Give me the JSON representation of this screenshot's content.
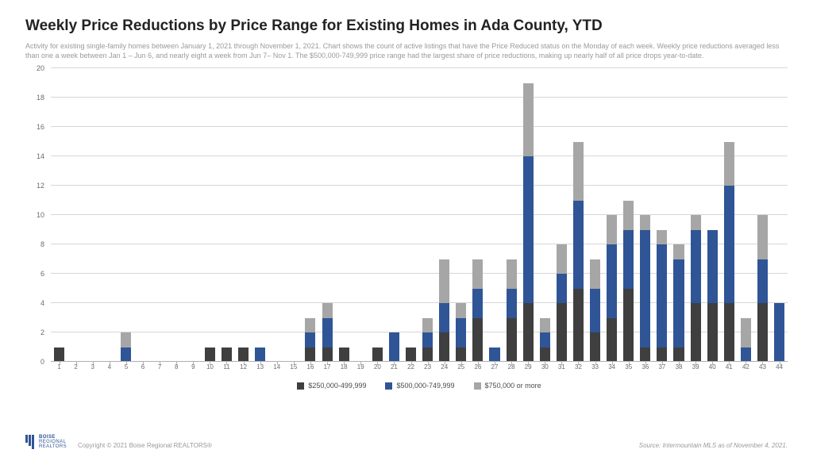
{
  "title": "Weekly Price Reductions by Price Range for Existing Homes in Ada County, YTD",
  "subtitle": "Activity for existing single-family homes between January 1, 2021 through November 1, 2021. Chart shows the count of active listings that have the Price Reduced status on the Monday of each week. Weekly price reductions averaged less than one a week between Jan 1 – Jun 6, and nearly eight a week from Jun 7– Nov 1.  The $500,000-749,999 price range had the largest  share of price reductions, making up nearly half of all price drops year-to-date.",
  "chart": {
    "type": "stacked-bar",
    "ylim": [
      0,
      20
    ],
    "ytick_step": 2,
    "grid_color": "#d6d6d6",
    "axis_color": "#b0b0b0",
    "label_color": "#6b6b6b",
    "label_fontsize": 9,
    "series": [
      {
        "key": "s1",
        "label": "$250,000-499,999",
        "color": "#3f3f3f"
      },
      {
        "key": "s2",
        "label": "$500,000-749,999",
        "color": "#2f5596"
      },
      {
        "key": "s3",
        "label": "$750,000 or more",
        "color": "#a6a6a6"
      }
    ],
    "categories": [
      "1",
      "2",
      "3",
      "4",
      "5",
      "6",
      "7",
      "8",
      "9",
      "10",
      "11",
      "12",
      "13",
      "14",
      "15",
      "16",
      "17",
      "18",
      "19",
      "20",
      "21",
      "22",
      "23",
      "24",
      "25",
      "26",
      "27",
      "28",
      "29",
      "30",
      "31",
      "32",
      "33",
      "34",
      "35",
      "36",
      "37",
      "38",
      "39",
      "40",
      "41",
      "42",
      "43",
      "44"
    ],
    "data": [
      {
        "s1": 1,
        "s2": 0,
        "s3": 0
      },
      {
        "s1": 0,
        "s2": 0,
        "s3": 0
      },
      {
        "s1": 0,
        "s2": 0,
        "s3": 0
      },
      {
        "s1": 0,
        "s2": 0,
        "s3": 0
      },
      {
        "s1": 0,
        "s2": 1,
        "s3": 1
      },
      {
        "s1": 0,
        "s2": 0,
        "s3": 0
      },
      {
        "s1": 0,
        "s2": 0,
        "s3": 0
      },
      {
        "s1": 0,
        "s2": 0,
        "s3": 0
      },
      {
        "s1": 0,
        "s2": 0,
        "s3": 0
      },
      {
        "s1": 1,
        "s2": 0,
        "s3": 0
      },
      {
        "s1": 1,
        "s2": 0,
        "s3": 0
      },
      {
        "s1": 1,
        "s2": 0,
        "s3": 0
      },
      {
        "s1": 0,
        "s2": 1,
        "s3": 0
      },
      {
        "s1": 0,
        "s2": 0,
        "s3": 0
      },
      {
        "s1": 0,
        "s2": 0,
        "s3": 0
      },
      {
        "s1": 1,
        "s2": 1,
        "s3": 1
      },
      {
        "s1": 1,
        "s2": 2,
        "s3": 1
      },
      {
        "s1": 1,
        "s2": 0,
        "s3": 0
      },
      {
        "s1": 0,
        "s2": 0,
        "s3": 0
      },
      {
        "s1": 1,
        "s2": 0,
        "s3": 0
      },
      {
        "s1": 0,
        "s2": 2,
        "s3": 0
      },
      {
        "s1": 1,
        "s2": 0,
        "s3": 0
      },
      {
        "s1": 1,
        "s2": 1,
        "s3": 1
      },
      {
        "s1": 2,
        "s2": 2,
        "s3": 3
      },
      {
        "s1": 1,
        "s2": 2,
        "s3": 1
      },
      {
        "s1": 3,
        "s2": 2,
        "s3": 2
      },
      {
        "s1": 0,
        "s2": 1,
        "s3": 0
      },
      {
        "s1": 3,
        "s2": 2,
        "s3": 2
      },
      {
        "s1": 4,
        "s2": 10,
        "s3": 5
      },
      {
        "s1": 1,
        "s2": 1,
        "s3": 1
      },
      {
        "s1": 4,
        "s2": 2,
        "s3": 2
      },
      {
        "s1": 5,
        "s2": 6,
        "s3": 4
      },
      {
        "s1": 2,
        "s2": 3,
        "s3": 2
      },
      {
        "s1": 3,
        "s2": 5,
        "s3": 2
      },
      {
        "s1": 5,
        "s2": 4,
        "s3": 2
      },
      {
        "s1": 1,
        "s2": 8,
        "s3": 1
      },
      {
        "s1": 1,
        "s2": 7,
        "s3": 1
      },
      {
        "s1": 1,
        "s2": 6,
        "s3": 1
      },
      {
        "s1": 4,
        "s2": 5,
        "s3": 1
      },
      {
        "s1": 4,
        "s2": 5,
        "s3": 0
      },
      {
        "s1": 4,
        "s2": 8,
        "s3": 3
      },
      {
        "s1": 0,
        "s2": 1,
        "s3": 2
      },
      {
        "s1": 4,
        "s2": 3,
        "s3": 3
      },
      {
        "s1": 0,
        "s2": 4,
        "s3": 0
      }
    ]
  },
  "logo": {
    "brand1": "BOISE",
    "brand2": "REGIONAL",
    "brand3": "REALTORS"
  },
  "copyright": "Copyright © 2021 Boise Regional REALTORS®",
  "source": "Source: Intermountain MLS as of November 4, 2021."
}
